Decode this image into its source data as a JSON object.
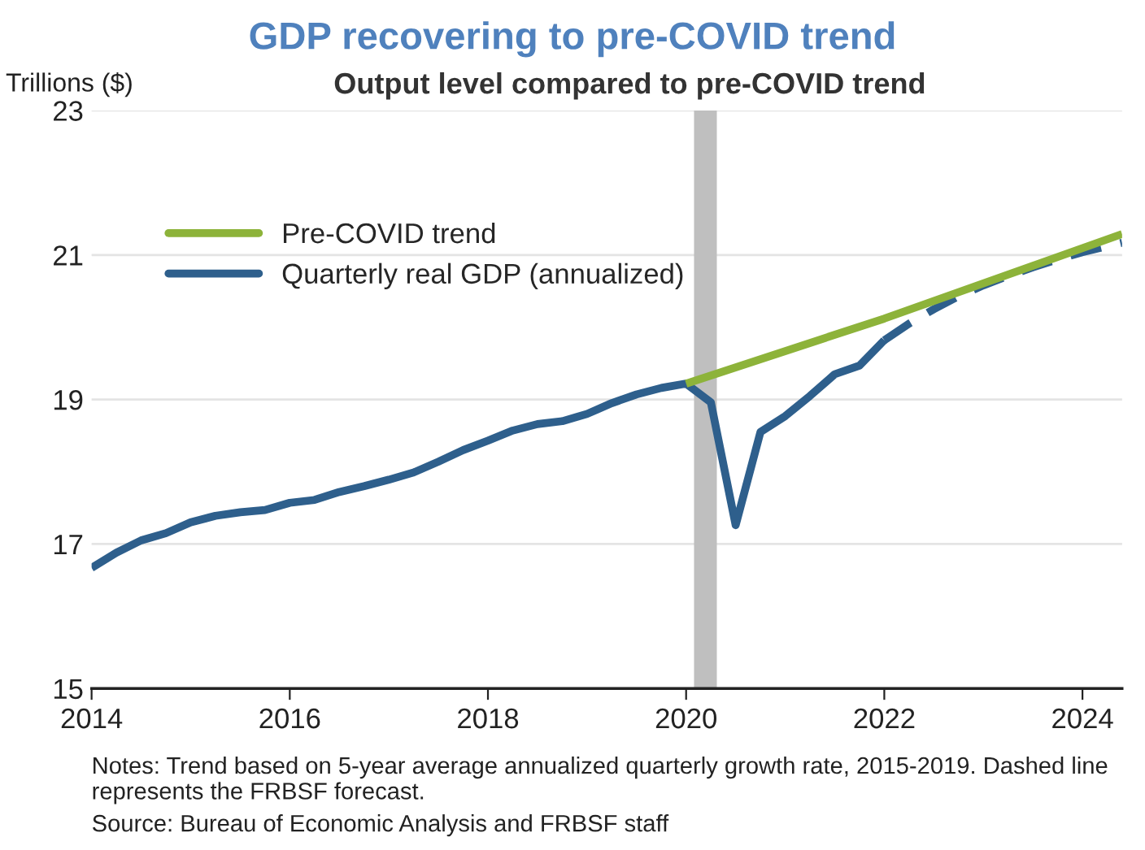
{
  "chart_data": {
    "type": "line",
    "title": "GDP recovering to pre-COVID trend",
    "subtitle": "Output level compared to pre-COVID trend",
    "ylabel": "Trillions ($)",
    "annotations": [
      "Notes: Trend based on 5-year average annualized quarterly growth rate, 2015-2019. Dashed line represents the FRBSF forecast.",
      "Source: Bureau of Economic Analysis and FRBSF staff"
    ],
    "xlim": [
      2014,
      2024.4
    ],
    "xticks": [
      2014,
      2016,
      2018,
      2020,
      2022,
      2024
    ],
    "ylim": [
      15,
      23
    ],
    "yticks": [
      15,
      17,
      19,
      21,
      23
    ],
    "grid": "y",
    "legend": "top left",
    "bands": [
      {
        "axis": "x",
        "from": 2020.08,
        "to": 2020.31,
        "color": "#bfbfbf"
      }
    ],
    "series": [
      {
        "name": "Pre-COVID trend",
        "color": "#8db33a",
        "line_style": "solid",
        "x": [
          2020.0,
          2022.0,
          2024.4
        ],
        "values": [
          19.22,
          20.12,
          21.29
        ]
      },
      {
        "name": "Quarterly real GDP (annualized)",
        "color": "#2e5f8c",
        "line_style": "solid",
        "x": [
          2014.0,
          2014.25,
          2014.5,
          2014.75,
          2015.0,
          2015.25,
          2015.5,
          2015.75,
          2016.0,
          2016.25,
          2016.5,
          2016.75,
          2017.0,
          2017.25,
          2017.5,
          2017.75,
          2018.0,
          2018.25,
          2018.5,
          2018.75,
          2019.0,
          2019.25,
          2019.5,
          2019.75,
          2020.0,
          2020.25,
          2020.5,
          2020.75,
          2021.0,
          2021.25,
          2021.5,
          2021.75,
          2022.0
        ],
        "values": [
          16.67,
          16.88,
          17.05,
          17.15,
          17.3,
          17.39,
          17.44,
          17.47,
          17.57,
          17.61,
          17.72,
          17.8,
          17.89,
          17.99,
          18.14,
          18.3,
          18.43,
          18.57,
          18.66,
          18.7,
          18.8,
          18.95,
          19.07,
          19.16,
          19.22,
          18.96,
          17.26,
          18.55,
          18.77,
          19.05,
          19.35,
          19.47,
          19.82
        ]
      },
      {
        "color": "#2e5f8c",
        "line_style": "dashed",
        "x": [
          2022.0,
          2022.25,
          2022.5,
          2022.75,
          2023.0,
          2023.25,
          2023.5,
          2023.75,
          2024.0,
          2024.4
        ],
        "values": [
          19.82,
          20.05,
          20.25,
          20.43,
          20.58,
          20.71,
          20.83,
          20.94,
          21.04,
          21.17
        ]
      }
    ]
  }
}
